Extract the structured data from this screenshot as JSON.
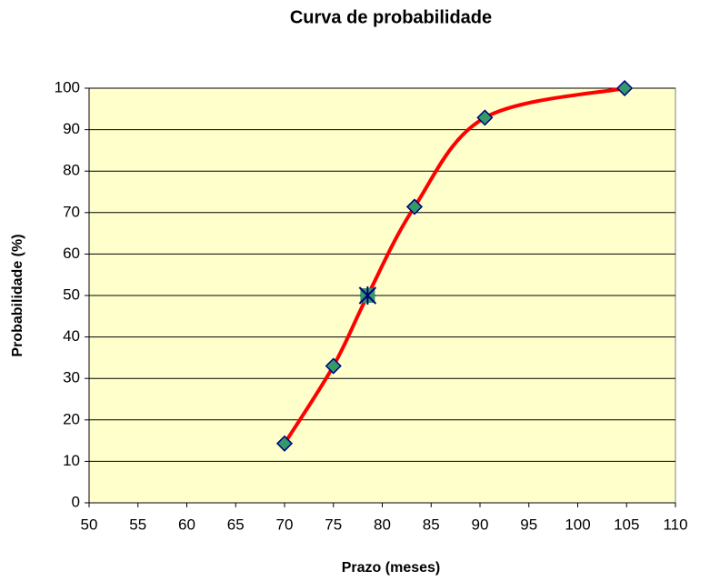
{
  "chart_data": {
    "type": "scatter",
    "title": "Curva de probabilidade",
    "x_label": "Prazo (meses)",
    "y_label": "Probabilidade (%)",
    "series": [
      {
        "x": [
          70,
          75,
          78.5,
          83.3,
          90.5,
          104.8
        ],
        "values": [
          14.3,
          33,
          50,
          71.4,
          92.9,
          100
        ],
        "color": "#ff0000",
        "marker_color": "#339966",
        "marker_edge": "#000080",
        "marker": "diamond",
        "smooth": true
      },
      {
        "x": [
          78.5
        ],
        "values": [
          50
        ],
        "color": "#339966",
        "marker_edge": "#000080",
        "marker": "star"
      }
    ],
    "xlim": [
      50,
      110
    ],
    "xticks": [
      50,
      55,
      60,
      65,
      70,
      75,
      80,
      85,
      90,
      95,
      100,
      105,
      110
    ],
    "ylim": [
      0,
      100
    ],
    "yticks": [
      0,
      10,
      20,
      30,
      40,
      50,
      60,
      70,
      80,
      90,
      100
    ],
    "grid": true,
    "background": "#ffffcc"
  }
}
